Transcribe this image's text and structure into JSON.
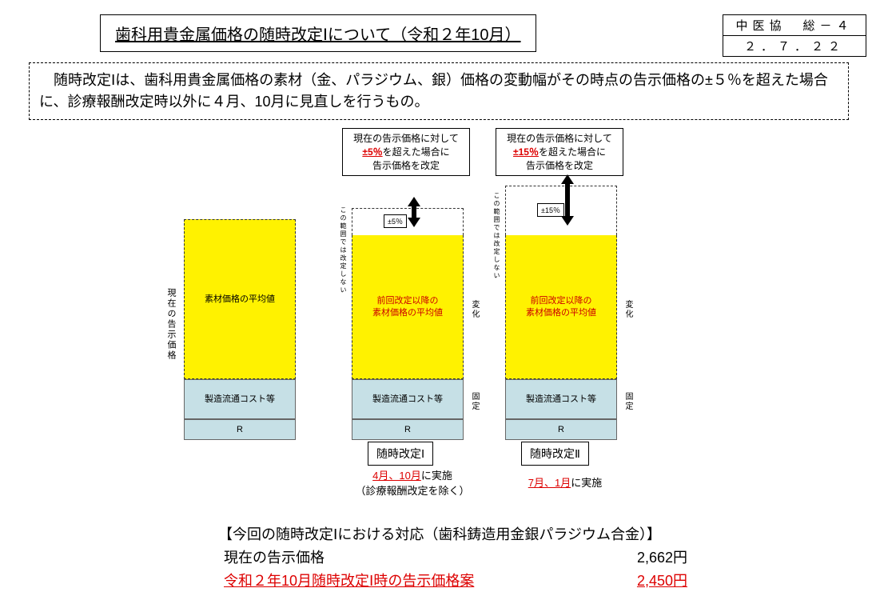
{
  "title": "歯科用貴金属価格の随時改定Ⅰについて（令和２年10月）",
  "corner": {
    "line1": "中医協　総－４",
    "line2": "２．７．２２"
  },
  "description": "　随時改定Ⅰは、歯科用貴金属価格の素材（金、パラジウム、銀）価格の変動幅がその時点の告示価格の±５％を超えた場合に、診療報酬改定時以外に４月、10月に見直しを行うもの。",
  "callouts": {
    "c1": {
      "l1": "現在の告示価格に対して",
      "mid_red": "±5％",
      "mid_tail": "を超えた場合に",
      "l3": "告示価格を改定"
    },
    "c2": {
      "l1": "現在の告示価格に対して",
      "mid_red": "±15％",
      "mid_tail": "を超えた場合に",
      "l3": "告示価格を改定"
    }
  },
  "tags": {
    "t1": "±5％",
    "t2": "±15％"
  },
  "segments": {
    "yellow0": "素材価格の平均値",
    "yellow12_l1": "前回改定以降の",
    "yellow12_l2": "素材価格の平均値",
    "blue1": "製造流通コスト等",
    "blue2": "R"
  },
  "vlabels": {
    "left": "現在の告示価格",
    "range": "この範囲では改定しない",
    "henka": "変化",
    "kotei": "固定"
  },
  "type_labels": {
    "t1": "随時改定Ⅰ",
    "t2": "随時改定Ⅱ"
  },
  "timing": {
    "t1_red": "4月、10月",
    "t1_tail": "に実施",
    "t1_sub": "（診療報酬改定を除く）",
    "t2_red": "7月、1月",
    "t2_tail": "に実施"
  },
  "price": {
    "header": "【今回の随時改定Ⅰにおける対応（歯科鋳造用金銀パラジウム合金）】",
    "row1_label": "現在の告示価格",
    "row1_value": "2,662円",
    "row2_label": "令和２年10月随時改定Ⅰ時の告示価格案",
    "row2_value": "2,450円"
  },
  "colors": {
    "yellow": "#fff200",
    "blue": "#c6e0e6",
    "red": "#d00000"
  }
}
